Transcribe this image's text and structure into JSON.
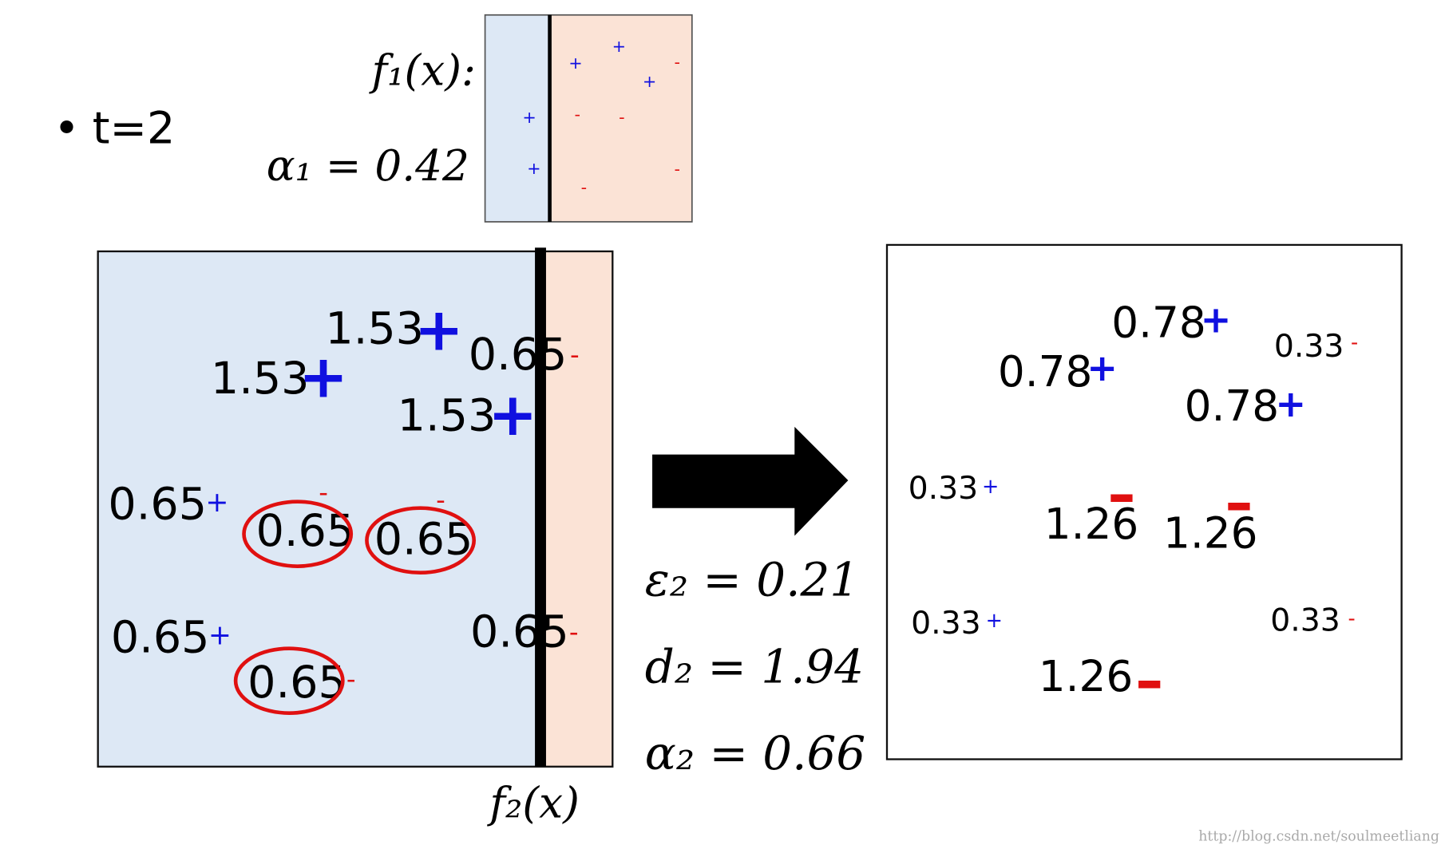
{
  "bullet": "t=2",
  "f1": {
    "label": "f₁(x):",
    "alpha": "α₁ = 0.42",
    "points": [
      "+",
      "+",
      "-",
      "+",
      "+",
      "-",
      "-",
      "+",
      "-",
      "-"
    ]
  },
  "f2": {
    "label": "f₂(x)",
    "points": [
      {
        "weight": 1.53,
        "sign": "+"
      },
      {
        "weight": 1.53,
        "sign": "+"
      },
      {
        "weight": 0.65,
        "sign": "-"
      },
      {
        "weight": 1.53,
        "sign": "+"
      },
      {
        "weight": 0.65,
        "sign": "+"
      },
      {
        "weight": 0.65,
        "sign": "-",
        "circled": true
      },
      {
        "weight": 0.65,
        "sign": "-",
        "circled": true
      },
      {
        "weight": 0.65,
        "sign": "+"
      },
      {
        "weight": 0.65,
        "sign": "-"
      },
      {
        "weight": 0.65,
        "sign": "-",
        "circled": true
      }
    ]
  },
  "equations": [
    "ε₂ = 0.21",
    "d₂ = 1.94",
    "α₂ = 0.66"
  ],
  "result": {
    "points": [
      {
        "weight": 0.78,
        "sign": "+"
      },
      {
        "weight": 0.33,
        "sign": "-"
      },
      {
        "weight": 0.78,
        "sign": "+"
      },
      {
        "weight": 0.78,
        "sign": "+"
      },
      {
        "weight": 0.33,
        "sign": "+"
      },
      {
        "weight": 1.26,
        "sign": "-"
      },
      {
        "weight": 1.26,
        "sign": "-"
      },
      {
        "weight": 0.33,
        "sign": "+"
      },
      {
        "weight": 0.33,
        "sign": "-"
      },
      {
        "weight": 1.26,
        "sign": "-"
      }
    ]
  },
  "watermark": "http://blog.csdn.net/soulmeetliang"
}
